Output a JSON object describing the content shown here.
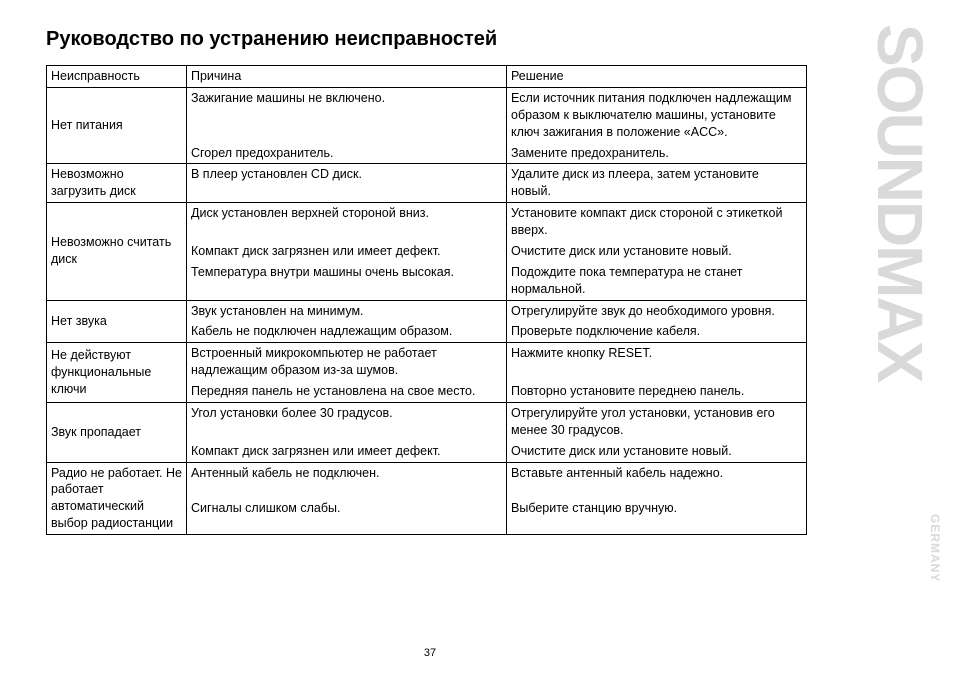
{
  "page": {
    "title": "Руководство по устранению неисправностей",
    "page_number": "37",
    "brand_main": "SOUNDMAX",
    "brand_sub": "GERMANY"
  },
  "table": {
    "headers": {
      "c1": "Неисправность",
      "c2": "Причина",
      "c3": "Решение"
    },
    "rows": {
      "r1": {
        "fault": "Нет питания",
        "cause_a": "Зажигание машины не включено.",
        "fix_a": "Если источник питания подключен надлежащим образом к выключателю машины, установите ключ зажигания в положение «ACC».",
        "cause_b": "Сгорел предохранитель.",
        "fix_b": "Замените предохранитель."
      },
      "r2": {
        "fault": "Невозможно загрузить диск",
        "cause": "В плеер установлен CD диск.",
        "fix": "Удалите диск из плеера, затем установите новый."
      },
      "r3": {
        "fault": "Невозможно считать диск",
        "cause_a": "Диск установлен верхней стороной вниз.",
        "fix_a": "Установите компакт диск стороной с этикеткой вверх.",
        "cause_b": "Компакт диск загрязнен или имеет дефект.",
        "fix_b": "Очистите диск или установите новый.",
        "cause_c": "Температура внутри машины очень высокая.",
        "fix_c": "Подождите пока температура не станет нормальной."
      },
      "r4": {
        "fault": "Нет звука",
        "cause_a": "Звук установлен на минимум.",
        "fix_a": "Отрегулируйте звук до необходимого уровня.",
        "cause_b": "Кабель не подключен надлежащим образом.",
        "fix_b": "Проверьте подключение кабеля."
      },
      "r5": {
        "fault": "Не действуют функциональные ключи",
        "cause_a": "Встроенный микрокомпьютер не работает надлежащим образом из-за шумов.",
        "fix_a": "Нажмите кнопку RESET.",
        "cause_b": "Передняя панель не установлена на свое место.",
        "fix_b": "Повторно установите переднею панель."
      },
      "r6": {
        "fault": "Звук пропадает",
        "cause_a": "Угол установки более 30 градусов.",
        "fix_a": "Отрегулируйте угол установки, установив его менее 30 градусов.",
        "cause_b": "Компакт диск загрязнен или имеет дефект.",
        "fix_b": "Очистите диск или установите новый."
      },
      "r7": {
        "fault": "Радио не работает. Не работает автоматический выбор радиостанции",
        "cause_a": "Антенный кабель не подключен.",
        "fix_a": "Вставьте антенный кабель надежно.",
        "cause_b": "Сигналы слишком слабы.",
        "fix_b": "Выберите станцию вручную."
      }
    }
  }
}
